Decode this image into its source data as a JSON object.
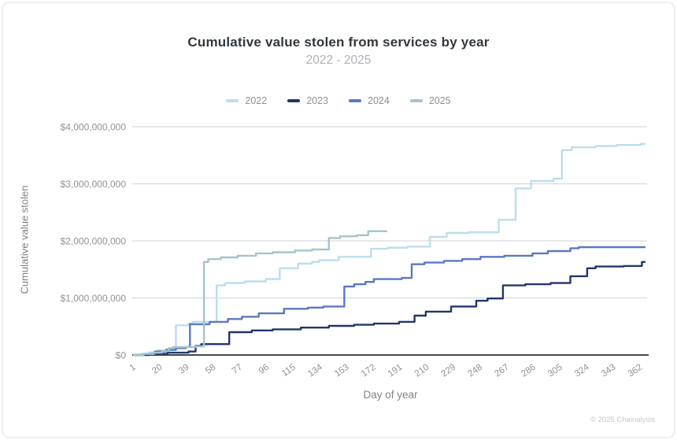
{
  "header": {
    "title": "Cumulative value stolen from services by year",
    "subtitle": "2022 - 2025"
  },
  "footer": {
    "copyright": "© 2025 Chainalysis"
  },
  "chart_data": {
    "type": "line",
    "step": "after",
    "title": "Cumulative value stolen from services by year",
    "subtitle": "2022 - 2025",
    "xlabel": "Day of year",
    "ylabel": "Cumulative value stolen",
    "legend_position": "top",
    "grid": "horizontal",
    "x_domain": [
      1,
      365
    ],
    "xticks": [
      1,
      20,
      39,
      58,
      77,
      96,
      115,
      134,
      153,
      172,
      191,
      210,
      229,
      248,
      267,
      286,
      305,
      324,
      343,
      362
    ],
    "y_unit": "USD",
    "y_value_scale": 1000000000,
    "ylim_billions": [
      0,
      4
    ],
    "yticks": [
      {
        "value": 0,
        "label": "$0"
      },
      {
        "value": 1,
        "label": "$1,000,000,000"
      },
      {
        "value": 2,
        "label": "$2,000,000,000"
      },
      {
        "value": 3,
        "label": "$3,000,000,000"
      },
      {
        "value": 4,
        "label": "$4,000,000,000"
      }
    ],
    "series": [
      {
        "name": "2022",
        "color": "#bcddf0",
        "final_value_billions": 3.7,
        "points_day_valueBillions": [
          [
            1,
            0
          ],
          [
            6,
            0.02
          ],
          [
            12,
            0.05
          ],
          [
            18,
            0.08
          ],
          [
            24,
            0.1
          ],
          [
            28,
            0.12
          ],
          [
            31,
            0.52
          ],
          [
            40,
            0.55
          ],
          [
            43,
            0.58
          ],
          [
            60,
            1.22
          ],
          [
            66,
            1.26
          ],
          [
            80,
            1.29
          ],
          [
            95,
            1.33
          ],
          [
            105,
            1.52
          ],
          [
            118,
            1.6
          ],
          [
            128,
            1.63
          ],
          [
            133,
            1.66
          ],
          [
            147,
            1.72
          ],
          [
            170,
            1.86
          ],
          [
            182,
            1.88
          ],
          [
            196,
            1.9
          ],
          [
            212,
            2.07
          ],
          [
            224,
            2.14
          ],
          [
            240,
            2.15
          ],
          [
            261,
            2.37
          ],
          [
            273,
            2.92
          ],
          [
            284,
            3.05
          ],
          [
            300,
            3.09
          ],
          [
            306,
            3.59
          ],
          [
            313,
            3.64
          ],
          [
            330,
            3.66
          ],
          [
            345,
            3.68
          ],
          [
            362,
            3.7
          ],
          [
            365,
            3.7
          ]
        ]
      },
      {
        "name": "2023",
        "color": "#22366b",
        "final_value_billions": 1.63,
        "points_day_valueBillions": [
          [
            1,
            0
          ],
          [
            12,
            0.02
          ],
          [
            25,
            0.04
          ],
          [
            40,
            0.06
          ],
          [
            45,
            0.16
          ],
          [
            49,
            0.19
          ],
          [
            69,
            0.4
          ],
          [
            85,
            0.43
          ],
          [
            100,
            0.45
          ],
          [
            120,
            0.48
          ],
          [
            140,
            0.51
          ],
          [
            158,
            0.53
          ],
          [
            172,
            0.55
          ],
          [
            190,
            0.58
          ],
          [
            201,
            0.69
          ],
          [
            209,
            0.76
          ],
          [
            227,
            0.85
          ],
          [
            245,
            0.95
          ],
          [
            253,
            0.99
          ],
          [
            264,
            1.22
          ],
          [
            280,
            1.24
          ],
          [
            298,
            1.26
          ],
          [
            312,
            1.38
          ],
          [
            324,
            1.52
          ],
          [
            330,
            1.55
          ],
          [
            350,
            1.56
          ],
          [
            363,
            1.63
          ],
          [
            365,
            1.63
          ]
        ]
      },
      {
        "name": "2024",
        "color": "#5b78c2",
        "final_value_billions": 1.89,
        "points_day_valueBillions": [
          [
            1,
            0
          ],
          [
            8,
            0.02
          ],
          [
            16,
            0.06
          ],
          [
            24,
            0.09
          ],
          [
            31,
            0.12
          ],
          [
            38,
            0.14
          ],
          [
            41,
            0.54
          ],
          [
            55,
            0.58
          ],
          [
            68,
            0.63
          ],
          [
            78,
            0.67
          ],
          [
            90,
            0.73
          ],
          [
            108,
            0.81
          ],
          [
            125,
            0.83
          ],
          [
            136,
            0.85
          ],
          [
            151,
            1.2
          ],
          [
            158,
            1.24
          ],
          [
            166,
            1.28
          ],
          [
            172,
            1.33
          ],
          [
            192,
            1.35
          ],
          [
            199,
            1.59
          ],
          [
            208,
            1.62
          ],
          [
            222,
            1.65
          ],
          [
            235,
            1.68
          ],
          [
            248,
            1.72
          ],
          [
            265,
            1.74
          ],
          [
            285,
            1.78
          ],
          [
            296,
            1.82
          ],
          [
            312,
            1.87
          ],
          [
            318,
            1.89
          ],
          [
            365,
            1.89
          ]
        ]
      },
      {
        "name": "2025",
        "color": "#a4c4ce",
        "final_value_billions": 2.17,
        "points_day_valueBillions": [
          [
            1,
            0
          ],
          [
            8,
            0.02
          ],
          [
            15,
            0.04
          ],
          [
            21,
            0.07
          ],
          [
            26,
            0.12
          ],
          [
            29,
            0.14
          ],
          [
            45,
            0.15
          ],
          [
            51,
            1.63
          ],
          [
            54,
            1.68
          ],
          [
            63,
            1.71
          ],
          [
            75,
            1.74
          ],
          [
            88,
            1.78
          ],
          [
            100,
            1.8
          ],
          [
            116,
            1.83
          ],
          [
            128,
            1.85
          ],
          [
            140,
            2.05
          ],
          [
            148,
            2.08
          ],
          [
            160,
            2.1
          ],
          [
            168,
            2.17
          ],
          [
            181,
            2.17
          ]
        ]
      }
    ]
  }
}
